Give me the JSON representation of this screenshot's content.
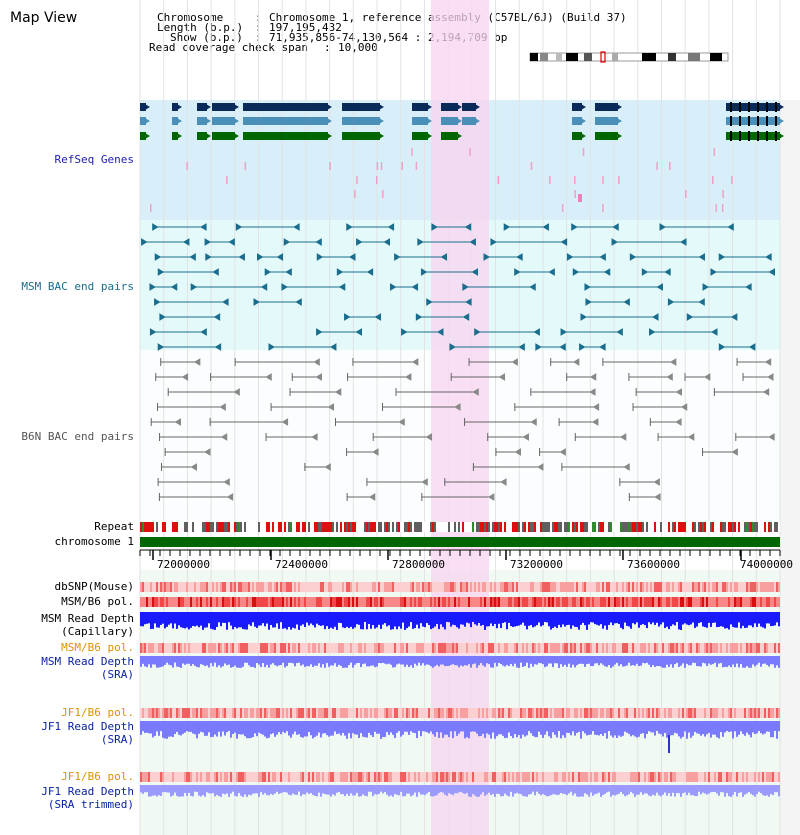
{
  "title": "Map View",
  "header": {
    "chromosome_key": "Chromosome",
    "chromosome_val": "Chromosome 1, reference assembly (C57BL/6J) (Build 37)",
    "length_key": "Length (b.p.)",
    "length_val": "197,195,432",
    "show_key": "Show (b.p.)",
    "show_val": "71,935,856-74,130,564 : 2,194,709 bp",
    "coverage_key": "Read coverage check span",
    "coverage_val": "10,000"
  },
  "tracks": {
    "refseq": "RefSeq Genes",
    "msm_bac": "MSM BAC end pairs",
    "b6n_bac": "B6N BAC end pairs",
    "repeat": "Repeat",
    "chromosome": "chromosome 1",
    "dbsnp": "dbSNP(Mouse)",
    "msm_b6_pol": "MSM/B6 pol.",
    "msm_depth_cap_1": "MSM Read Depth",
    "msm_depth_cap_2": "(Capillary)",
    "msm_b6_pol_sra": "MSM/B6 pol.",
    "msm_depth_sra_1": "MSM Read Depth",
    "msm_depth_sra_2": "(SRA)",
    "jf1_b6_pol": "JF1/B6 pol.",
    "jf1_depth_1": "JF1 Read Depth",
    "jf1_depth_2": "(SRA)",
    "jf1_b6_pol_trim": "JF1/B6 pol.",
    "jf1_depth_trim_1": "JF1 Read Depth",
    "jf1_depth_trim_2": "(SRA trimmed)"
  },
  "axis": {
    "ticks": [
      "72000000",
      "72400000",
      "72800000",
      "73200000",
      "73600000",
      "74000000"
    ]
  },
  "colors": {
    "refseq_bg": "#d8eef8",
    "msm_bg": "#e4fafa",
    "highlight": "#f8d4f0",
    "chromosome_bar": "#006600",
    "gene_navy": "#0a2a5a",
    "gene_blue": "#4a8fb8",
    "gene_green": "#006600",
    "msm_line": "#1a6d8c",
    "b6n_line": "#666666",
    "depth_blue": "#1a1aff",
    "depth_light": "#7a7aff"
  }
}
